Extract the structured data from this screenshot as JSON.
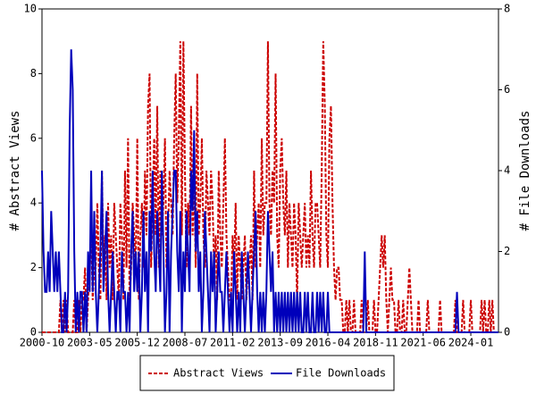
{
  "chart_data": {
    "type": "line",
    "y_label": "# Abstract Views",
    "y2_label": "# File Downloads",
    "categories": [
      "2000-10",
      null,
      null,
      null,
      null,
      null,
      null,
      null,
      null,
      null,
      null,
      null,
      null,
      null,
      null,
      null,
      null,
      null,
      null,
      null,
      null,
      null,
      null,
      null,
      null,
      null,
      null,
      null,
      null,
      null,
      null,
      "2003-05",
      null,
      null,
      null,
      null,
      null,
      null,
      null,
      null,
      null,
      null,
      null,
      null,
      null,
      null,
      null,
      null,
      null,
      null,
      null,
      null,
      null,
      null,
      null,
      null,
      null,
      null,
      null,
      null,
      null,
      null,
      "2005-12",
      null,
      null,
      null,
      null,
      null,
      null,
      null,
      null,
      null,
      null,
      null,
      null,
      null,
      null,
      null,
      null,
      null,
      null,
      null,
      null,
      null,
      null,
      null,
      null,
      null,
      null,
      null,
      null,
      null,
      null,
      "2008-07",
      null,
      null,
      null,
      null,
      null,
      null,
      null,
      null,
      null,
      null,
      null,
      null,
      null,
      null,
      null,
      null,
      null,
      null,
      null,
      null,
      null,
      null,
      null,
      null,
      null,
      null,
      null,
      null,
      null,
      null,
      "2011-02",
      null,
      null,
      null,
      null,
      null,
      null,
      null,
      null,
      null,
      null,
      null,
      null,
      null,
      null,
      null,
      null,
      null,
      null,
      null,
      null,
      null,
      null,
      null,
      null,
      null,
      null,
      null,
      null,
      null,
      null,
      "2013-09",
      null,
      null,
      null,
      null,
      null,
      null,
      null,
      null,
      null,
      null,
      null,
      null,
      null,
      null,
      null,
      null,
      null,
      null,
      null,
      null,
      null,
      null,
      null,
      null,
      null,
      null,
      null,
      null,
      null,
      null,
      "2016-04",
      null,
      null,
      null,
      null,
      null,
      null,
      null,
      null,
      null,
      null,
      null,
      null,
      null,
      null,
      null,
      null,
      null,
      null,
      null,
      null,
      null,
      null,
      null,
      null,
      null,
      null,
      null,
      null,
      null,
      null,
      "2018-11",
      null,
      null,
      null,
      null,
      null,
      null,
      null,
      null,
      null,
      null,
      null,
      null,
      null,
      null,
      null,
      null,
      null,
      null,
      null,
      null,
      null,
      null,
      null,
      null,
      null,
      null,
      null,
      null,
      null,
      null,
      "2021-06",
      null,
      null,
      null,
      null,
      null,
      null,
      null,
      null,
      null,
      null,
      null,
      null,
      null,
      null,
      null,
      null,
      null,
      null,
      null,
      null,
      null,
      null,
      null,
      null,
      null,
      null,
      null,
      null,
      null,
      null,
      "2024-01",
      null,
      null,
      null,
      null,
      null,
      null,
      null,
      null,
      null,
      null,
      null,
      null,
      null,
      null,
      null,
      null,
      null,
      null
    ],
    "series": [
      {
        "name": "Abstract Views",
        "color": "#cc0000",
        "dash": true,
        "values": [
          0,
          0,
          0,
          0,
          0,
          0,
          0,
          0,
          0,
          0,
          0,
          0,
          1,
          0,
          1,
          0,
          1,
          0,
          0,
          0,
          0,
          1,
          0,
          0,
          1,
          0,
          1,
          1,
          2,
          0,
          1,
          2,
          3,
          1,
          2,
          2,
          4,
          2,
          1,
          5,
          2,
          3,
          1,
          4,
          2,
          3,
          1,
          4,
          3,
          2,
          1,
          4,
          3,
          1,
          5,
          2,
          6,
          1,
          2,
          4,
          3,
          2,
          6,
          1,
          3,
          4,
          2,
          5,
          3,
          7,
          8,
          2,
          4,
          6,
          3,
          7,
          2,
          5,
          3,
          4,
          6,
          2,
          3,
          5,
          4,
          3,
          6,
          8,
          4,
          6,
          9,
          3,
          9,
          5,
          2,
          4,
          3,
          7,
          3,
          5,
          2,
          8,
          3,
          4,
          6,
          3,
          2,
          5,
          4,
          3,
          5,
          4,
          2,
          3,
          1,
          5,
          3,
          2,
          4,
          6,
          3,
          2,
          1,
          1,
          3,
          2,
          4,
          1,
          3,
          2,
          1,
          2,
          3,
          1,
          2,
          2,
          3,
          1,
          5,
          2,
          3,
          4,
          2,
          6,
          3,
          4,
          4,
          9,
          4,
          3,
          5,
          4,
          8,
          3,
          2,
          5,
          6,
          4,
          3,
          5,
          2,
          4,
          3,
          2,
          4,
          3,
          1,
          4,
          3,
          2,
          3,
          4,
          2,
          3,
          2,
          5,
          3,
          2,
          4,
          4,
          3,
          2,
          5,
          9,
          7,
          3,
          2,
          6,
          7,
          4,
          2,
          1,
          2,
          2,
          1,
          1,
          0,
          0,
          1,
          0,
          1,
          0,
          0,
          1,
          0,
          0,
          0,
          0,
          1,
          0,
          0,
          0,
          1,
          0,
          0,
          0,
          1,
          0,
          0,
          1,
          2,
          3,
          2,
          3,
          1,
          0,
          1,
          2,
          1,
          1,
          0,
          0,
          1,
          0,
          0,
          1,
          0,
          0,
          1,
          2,
          1,
          0,
          0,
          0,
          0,
          1,
          0,
          0,
          0,
          0,
          0,
          1,
          0,
          0,
          0,
          0,
          0,
          0,
          0,
          1,
          0,
          0,
          0,
          0,
          0,
          0,
          0,
          0,
          0,
          1,
          0,
          0,
          0,
          0,
          1,
          0,
          0,
          0,
          0,
          1,
          0,
          0,
          0,
          0,
          0,
          0,
          1,
          0,
          1,
          0,
          0,
          1,
          0,
          1,
          0,
          0,
          0,
          0
        ]
      },
      {
        "name": "File Downloads",
        "color": "#0000bb",
        "axis": "y2",
        "values": [
          4,
          2,
          1,
          1,
          2,
          1,
          3,
          2,
          1,
          2,
          1,
          2,
          1,
          0,
          0,
          1,
          0,
          1,
          5,
          7,
          6,
          2,
          0,
          1,
          0,
          1,
          1,
          0,
          1,
          0,
          2,
          1,
          4,
          1,
          3,
          1,
          0,
          1,
          2,
          4,
          1,
          2,
          3,
          1,
          0,
          1,
          2,
          1,
          0,
          1,
          1,
          0,
          2,
          1,
          1,
          0,
          1,
          0,
          2,
          3,
          1,
          2,
          1,
          2,
          0,
          1,
          3,
          1,
          2,
          0,
          3,
          2,
          4,
          2,
          1,
          3,
          2,
          1,
          4,
          2,
          0,
          1,
          3,
          0,
          2,
          3,
          4,
          4,
          2,
          1,
          3,
          0,
          2,
          1,
          3,
          2,
          1,
          4,
          3,
          5,
          2,
          3,
          1,
          2,
          0,
          1,
          3,
          2,
          1,
          0,
          2,
          1,
          2,
          0,
          1,
          2,
          1,
          1,
          0,
          1,
          2,
          1,
          0,
          1,
          0,
          2,
          1,
          0,
          1,
          0,
          2,
          1,
          0,
          1,
          2,
          1,
          0,
          1,
          2,
          3,
          1,
          0,
          1,
          0,
          1,
          0,
          1,
          3,
          2,
          1,
          2,
          0,
          1,
          0,
          1,
          0,
          1,
          0,
          1,
          0,
          1,
          0,
          1,
          0,
          1,
          0,
          1,
          0,
          1,
          0,
          0,
          1,
          0,
          1,
          0,
          0,
          1,
          0,
          0,
          1,
          0,
          1,
          0,
          1,
          0,
          0,
          1,
          0,
          0,
          0,
          0,
          0,
          0,
          0,
          0,
          0,
          0,
          0,
          0,
          0,
          0,
          0,
          0,
          0,
          0,
          0,
          0,
          0,
          0,
          0,
          2,
          0,
          0,
          0,
          0,
          0,
          0,
          0,
          0,
          0,
          0,
          0,
          0,
          0,
          0,
          0,
          0,
          0,
          0,
          0,
          0,
          0,
          0,
          0,
          0,
          0,
          0,
          0,
          0,
          0,
          0,
          0,
          0,
          0,
          0,
          0,
          0,
          0,
          0,
          0,
          0,
          0,
          0,
          0,
          0,
          0,
          0,
          0,
          0,
          0,
          0,
          0,
          0,
          0,
          0,
          0,
          0,
          0,
          0,
          0,
          1,
          0,
          0,
          0,
          0,
          0,
          0,
          0,
          0,
          0,
          0,
          0,
          0,
          0,
          0,
          0,
          0,
          0,
          0,
          0,
          0,
          0,
          0,
          0,
          0,
          0,
          0,
          0
        ]
      }
    ],
    "ylim": [
      0,
      10
    ],
    "yticks": [
      0,
      2,
      4,
      6,
      8,
      10
    ],
    "y2lim": [
      0,
      8
    ],
    "y2ticks": [
      0,
      2,
      4,
      6,
      8
    ],
    "grid": false,
    "legend": "bottom"
  }
}
